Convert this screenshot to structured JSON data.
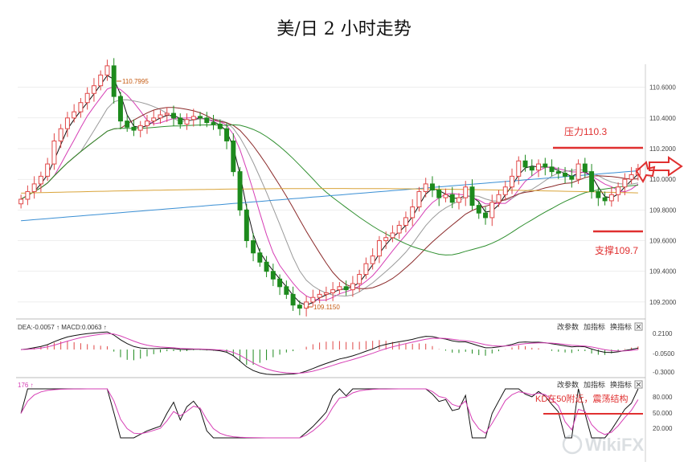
{
  "title": "美/日 2 小时走势",
  "colors": {
    "up": "#e04848",
    "down": "#1d8a1d",
    "ma_short": "#111111",
    "ma_pink": "#d63fb5",
    "ma_gray": "#9a9a9a",
    "ma_brown": "#8b2a2a",
    "ma_green": "#2f8f2f",
    "ma_blue": "#3a8fd4",
    "ma_orange": "#d9a43a",
    "annotation": "#e03030",
    "axis_text": "#444444",
    "grid": "#dddddd"
  },
  "main_panel": {
    "y_ticks": [
      "110.6000",
      "110.4000",
      "110.2000",
      "110.0000",
      "109.8000",
      "109.6000",
      "109.4000",
      "109.2000"
    ],
    "high_label": "110.7995",
    "low_label": "109.1150",
    "resistance_label": "压力110.3",
    "support_label": "支撑109.7"
  },
  "macd_panel": {
    "header": "DEA:-0.0057 ↑ MACD:0.0063 ↑",
    "y_ticks": [
      "0.2100",
      "-0.0500",
      "-0.3000"
    ],
    "buttons": [
      "改参数",
      "加指标",
      "换指标"
    ]
  },
  "kd_panel": {
    "header": "176 ↑",
    "y_ticks": [
      "80.000",
      "50.000",
      "20.000"
    ],
    "buttons": [
      "改参数",
      "加指标",
      "换指标"
    ],
    "annotation": "KD在50附近，震荡结构"
  },
  "watermark": "WikiFX",
  "chart_data": {
    "type": "candlestick",
    "title": "美/日 2 小时走势",
    "ylim": [
      109.1,
      110.75
    ],
    "support": 109.7,
    "resistance": 110.3,
    "high": 110.7995,
    "low": 109.115,
    "closes": [
      109.87,
      109.92,
      109.97,
      110.02,
      110.1,
      110.25,
      110.33,
      110.4,
      110.44,
      110.5,
      110.56,
      110.61,
      110.68,
      110.74,
      110.54,
      110.38,
      110.34,
      110.32,
      110.35,
      110.38,
      110.4,
      110.42,
      110.43,
      110.4,
      110.36,
      110.39,
      110.41,
      110.4,
      110.37,
      110.36,
      110.33,
      110.25,
      110.05,
      109.8,
      109.6,
      109.52,
      109.46,
      109.4,
      109.35,
      109.3,
      109.25,
      109.18,
      109.16,
      109.2,
      109.23,
      109.25,
      109.26,
      109.28,
      109.3,
      109.28,
      109.32,
      109.38,
      109.45,
      109.5,
      109.6,
      109.62,
      109.65,
      109.7,
      109.75,
      109.82,
      109.92,
      109.97,
      109.93,
      109.88,
      109.9,
      109.85,
      109.88,
      109.95,
      109.83,
      109.78,
      109.75,
      109.85,
      109.9,
      109.95,
      110.02,
      110.12,
      110.08,
      110.06,
      110.1,
      110.08,
      110.05,
      110.04,
      110.02,
      110.0,
      110.1,
      110.05,
      109.92,
      109.88,
      109.86,
      109.9,
      109.95,
      110.0,
      110.03,
      110.07
    ],
    "macd_range": [
      -0.3,
      0.21
    ],
    "kd_range": [
      0,
      100
    ]
  }
}
